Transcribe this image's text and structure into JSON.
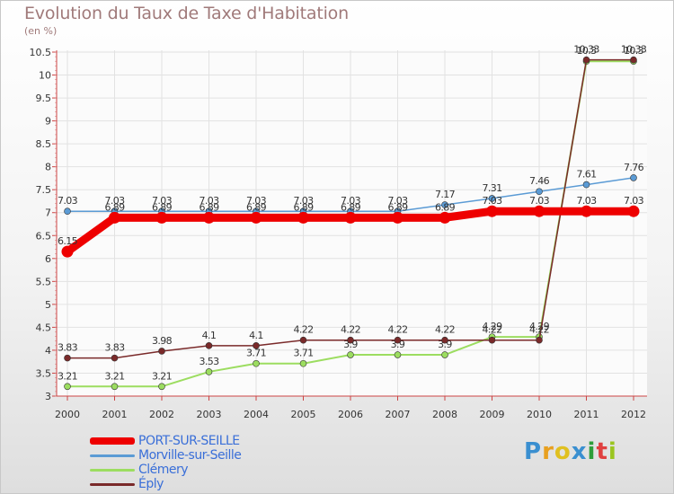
{
  "header": {
    "title": "Evolution du Taux de Taxe d'Habitation",
    "subtitle": "(en %)"
  },
  "brand": {
    "letters": [
      "P",
      "r",
      "o",
      "x",
      "i",
      "t",
      "i"
    ]
  },
  "chart_data": {
    "type": "line",
    "title": "Evolution du Taux de Taxe d'Habitation",
    "ylabel": "(en %)",
    "xlabel": "",
    "ylim": [
      3,
      10.5
    ],
    "yticks": [
      "3",
      "3.5",
      "4",
      "4.5",
      "5",
      "5.5",
      "6",
      "6.5",
      "7",
      "7.5",
      "8",
      "8.5",
      "9",
      "9.5",
      "10",
      "10.5"
    ],
    "x": [
      "2000",
      "2001",
      "2002",
      "2003",
      "2004",
      "2005",
      "2006",
      "2007",
      "2008",
      "2009",
      "2010",
      "2011",
      "2012"
    ],
    "series": [
      {
        "name": "PORT-SUR-SEILLE",
        "color": "#ee0000",
        "values": [
          6.15,
          6.89,
          6.89,
          6.89,
          6.89,
          6.89,
          6.89,
          6.89,
          6.89,
          7.03,
          7.03,
          7.03,
          7.03
        ],
        "labels": [
          "6.15",
          "6.89",
          "6.89",
          "6.89",
          "6.89",
          "6.89",
          "6.89",
          "6.89",
          "6.89",
          "7.03",
          "7.03",
          "7.03",
          "7.03"
        ]
      },
      {
        "name": "Morville-sur-Seille",
        "color": "#5b9bd5",
        "values": [
          7.03,
          7.03,
          7.03,
          7.03,
          7.03,
          7.03,
          7.03,
          7.03,
          7.17,
          7.31,
          7.46,
          7.61,
          7.76
        ],
        "labels": [
          "7.03",
          "7.03",
          "7.03",
          "7.03",
          "7.03",
          "7.03",
          "7.03",
          "7.03",
          "7.17",
          "7.31",
          "7.46",
          "7.61",
          "7.76"
        ]
      },
      {
        "name": "Clémery",
        "color": "#9cdd60",
        "values": [
          3.21,
          3.21,
          3.21,
          3.53,
          3.71,
          3.71,
          3.9,
          3.9,
          3.9,
          4.29,
          4.29,
          10.3,
          10.3
        ],
        "labels": [
          "3.21",
          "3.21",
          "3.21",
          "3.53",
          "3.71",
          "3.71",
          "3.9",
          "3.9",
          "3.9",
          "4.29",
          "4.29",
          "10.3",
          "10.3"
        ]
      },
      {
        "name": "Éply",
        "color": "#7a2a2a",
        "values": [
          3.83,
          3.83,
          3.98,
          4.1,
          4.1,
          4.22,
          4.22,
          4.22,
          4.22,
          4.22,
          4.22,
          10.33,
          10.33
        ],
        "labels": [
          "3.83",
          "3.83",
          "3.98",
          "4.1",
          "4.1",
          "4.22",
          "4.22",
          "4.22",
          "4.22",
          "4.22",
          "4.22",
          "10.33",
          "10.33"
        ]
      }
    ]
  }
}
